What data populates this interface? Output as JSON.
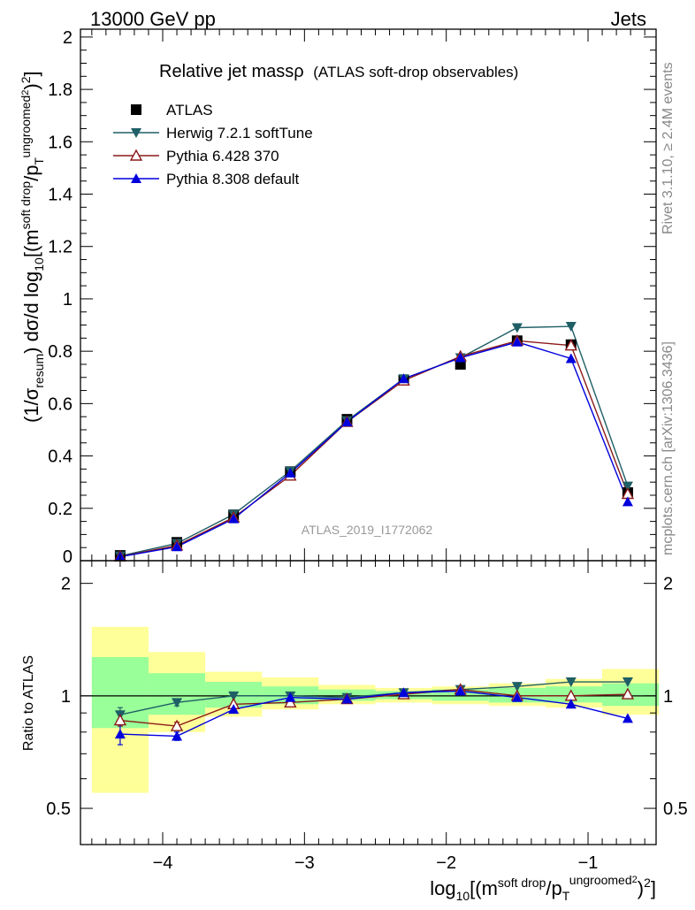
{
  "header": {
    "left": "13000 GeV pp",
    "right": "Jets"
  },
  "side": {
    "rivet": "Rivet 3.1.10, ≥ 2.4M events",
    "mcplots": "mcplots.cern.ch [arXiv:1306.3436]"
  },
  "chart_data": {
    "type": "scatter",
    "title_main": "Relative jet massρ",
    "title_sub": "(ATLAS soft-drop observables)",
    "analysis_label": "ATLAS_2019_I1772062",
    "xlabel": {
      "base": "log",
      "sub1": "10",
      "open": "[(m",
      "sup1": "soft drop",
      "slash": "/p",
      "sub2": "T",
      "sup2": "ungroomed",
      "sup3": "2",
      "close": ")",
      "sup4": "2",
      "end": "]"
    },
    "ylabel": {
      "open": "(1/σ",
      "sub1": "resum",
      "mid": ") dσ/d log",
      "sub2": "10",
      "open2": "[(m",
      "sup1": "soft drop",
      "slash": "/p",
      "sub3": "T",
      "sup2": "ungroomed",
      "sup3": "2",
      "close": ")",
      "sup4": "2",
      "end": "]"
    },
    "ratio_ylabel": "Ratio to ATLAS",
    "xlim": [
      -4.58,
      -0.52
    ],
    "ylim_main": [
      0,
      2.03
    ],
    "ylim_ratio_log": [
      0.4,
      2.3
    ],
    "x_ticks": [
      -4,
      -3,
      -2,
      -1
    ],
    "x_tick_labels": [
      "−4",
      "−3",
      "−2",
      "−1"
    ],
    "y_ticks_main": [
      0,
      0.2,
      0.4,
      0.6,
      0.8,
      1,
      1.2,
      1.4,
      1.6,
      1.8,
      2
    ],
    "y_tick_labels_main": [
      "0",
      "0.2",
      "0.4",
      "0.6",
      "0.8",
      "1",
      "1.2",
      "1.4",
      "1.6",
      "1.8",
      "2"
    ],
    "y_ticks_ratio": [
      0.5,
      1,
      2
    ],
    "y_tick_labels_ratio": [
      "0.5",
      "1",
      "2"
    ],
    "bin_edges": [
      -4.5,
      -4.1,
      -3.7,
      -3.3,
      -2.9,
      -2.5,
      -2.1,
      -1.7,
      -1.3,
      -0.9,
      -0.5
    ],
    "x": [
      -4.3,
      -3.9,
      -3.5,
      -3.1,
      -2.7,
      -2.3,
      -1.9,
      -1.5,
      -1.12,
      -0.72
    ],
    "band_green": [
      [
        0.82,
        1.27
      ],
      [
        0.89,
        1.15
      ],
      [
        0.93,
        1.09
      ],
      [
        0.95,
        1.06
      ],
      [
        0.97,
        1.04
      ],
      [
        0.98,
        1.03
      ],
      [
        0.97,
        1.04
      ],
      [
        0.96,
        1.05
      ],
      [
        0.96,
        1.06
      ],
      [
        0.94,
        1.08
      ]
    ],
    "band_yellow": [
      [
        0.55,
        1.53
      ],
      [
        0.8,
        1.31
      ],
      [
        0.88,
        1.16
      ],
      [
        0.92,
        1.12
      ],
      [
        0.95,
        1.07
      ],
      [
        0.96,
        1.05
      ],
      [
        0.95,
        1.06
      ],
      [
        0.94,
        1.08
      ],
      [
        0.93,
        1.11
      ],
      [
        0.89,
        1.18
      ]
    ],
    "series": [
      {
        "name": "ATLAS",
        "color": "#000000",
        "marker": "square",
        "values": [
          0.02,
          0.07,
          0.175,
          0.34,
          0.54,
          0.69,
          0.75,
          0.84,
          0.825,
          0.26
        ],
        "ratio": [
          1,
          1,
          1,
          1,
          1,
          1,
          1,
          1,
          1,
          1
        ]
      },
      {
        "name": "Herwig 7.2.1 softTune",
        "color": "#1f5f66",
        "marker": "triangle-down",
        "values": [
          0.018,
          0.066,
          0.177,
          0.342,
          0.535,
          0.695,
          0.775,
          0.89,
          0.895,
          0.285
        ],
        "ratio": [
          0.89,
          0.96,
          1.0,
          1.0,
          0.99,
          1.02,
          1.04,
          1.06,
          1.09,
          1.09
        ],
        "ratio_err": [
          0.04,
          0.02,
          0.01,
          0.01,
          0.01,
          0.01,
          0.01,
          0.01,
          0.01,
          0.01
        ]
      },
      {
        "name": "Pythia 6.428 370",
        "color": "#8b1a1a",
        "marker": "triangle-up-open",
        "values": [
          0.016,
          0.058,
          0.165,
          0.325,
          0.53,
          0.688,
          0.78,
          0.84,
          0.822,
          0.255
        ],
        "ratio": [
          0.86,
          0.83,
          0.95,
          0.96,
          0.98,
          1.01,
          1.04,
          1.0,
          1.0,
          1.01
        ],
        "ratio_err": [
          0.03,
          0.02,
          0.01,
          0.01,
          0.01,
          0.01,
          0.01,
          0.01,
          0.01,
          0.01
        ]
      },
      {
        "name": "Pythia 8.308 default",
        "color": "#0000dd",
        "marker": "triangle-up",
        "values": [
          0.015,
          0.053,
          0.16,
          0.335,
          0.53,
          0.695,
          0.775,
          0.835,
          0.772,
          0.225
        ],
        "ratio": [
          0.79,
          0.78,
          0.92,
          0.99,
          0.98,
          1.02,
          1.03,
          0.99,
          0.95,
          0.87
        ],
        "ratio_err": [
          0.05,
          0.02,
          0.01,
          0.01,
          0.01,
          0.01,
          0.01,
          0.01,
          0.01,
          0.01
        ]
      }
    ]
  }
}
